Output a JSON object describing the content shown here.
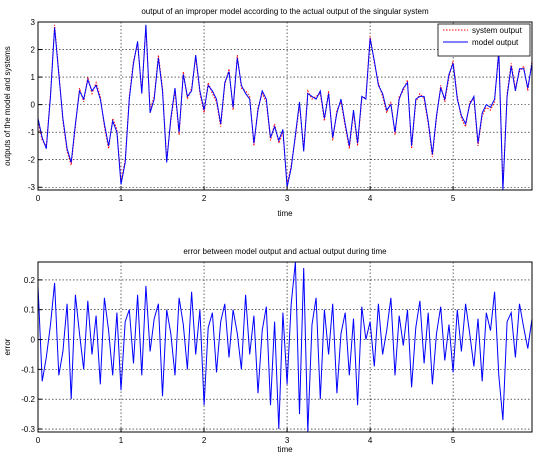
{
  "chart_data": [
    {
      "type": "line",
      "title": "output of an improper model according to the actual output of the singular system",
      "xlabel": "time",
      "ylabel": "outputs of the model and systems",
      "xlim": [
        0,
        5.95
      ],
      "ylim": [
        -3.1,
        3
      ],
      "xticks": [
        0,
        1,
        2,
        3,
        4,
        5
      ],
      "yticks": [
        -3,
        -2,
        -1,
        0,
        1,
        2,
        3
      ],
      "grid": true,
      "legend": "top-right",
      "series": [
        {
          "name": "system output",
          "color": "#ff0000",
          "style": "dotted",
          "x": [
            0,
            0.05,
            0.1,
            0.15,
            0.2,
            0.25,
            0.3,
            0.35,
            0.4,
            0.45,
            0.5,
            0.55,
            0.6,
            0.65,
            0.7,
            0.75,
            0.8,
            0.85,
            0.9,
            0.95,
            1.0,
            1.05,
            1.1,
            1.15,
            1.2,
            1.25,
            1.3,
            1.35,
            1.4,
            1.45,
            1.5,
            1.55,
            1.6,
            1.65,
            1.7,
            1.75,
            1.8,
            1.85,
            1.9,
            1.95,
            2.0,
            2.05,
            2.1,
            2.15,
            2.2,
            2.25,
            2.3,
            2.35,
            2.4,
            2.45,
            2.5,
            2.55,
            2.6,
            2.65,
            2.7,
            2.75,
            2.8,
            2.85,
            2.9,
            2.95,
            3.0,
            3.05,
            3.1,
            3.15,
            3.2,
            3.25,
            3.3,
            3.35,
            3.4,
            3.45,
            3.5,
            3.55,
            3.6,
            3.65,
            3.7,
            3.75,
            3.8,
            3.85,
            3.9,
            3.95,
            4.0,
            4.05,
            4.1,
            4.15,
            4.2,
            4.25,
            4.3,
            4.35,
            4.4,
            4.45,
            4.5,
            4.55,
            4.6,
            4.65,
            4.7,
            4.75,
            4.8,
            4.85,
            4.9,
            4.95,
            5.0,
            5.05,
            5.1,
            5.15,
            5.2,
            5.25,
            5.3,
            5.35,
            5.4,
            5.45,
            5.5,
            5.55,
            5.6,
            5.65,
            5.7,
            5.75,
            5.8,
            5.85,
            5.9,
            5.95
          ],
          "y": [
            -0.6,
            -1.3,
            -1.5,
            0.4,
            2.9,
            1.2,
            -0.6,
            -1.7,
            -2.2,
            -0.8,
            0.6,
            0.1,
            1.0,
            0.4,
            0.8,
            0.3,
            -0.8,
            -1.6,
            -0.5,
            -0.9,
            -2.8,
            -2.0,
            0.3,
            1.6,
            2.2,
            0.5,
            2.8,
            -0.2,
            0.3,
            1.8,
            0.6,
            -2.0,
            -0.6,
            0.5,
            -1.1,
            1.2,
            0.2,
            0.6,
            1.7,
            0.4,
            -0.3,
            0.8,
            0.4,
            0.1,
            -0.8,
            0.7,
            1.3,
            -0.2,
            1.8,
            0.6,
            0.5,
            0.3,
            -1.5,
            -0.1,
            0.4,
            0.1,
            -1.3,
            -0.7,
            -1.4,
            -1.0,
            -2.9,
            -2.2,
            -1.2,
            0.0,
            -1.6,
            0.5,
            0.2,
            0.3,
            0.4,
            -0.6,
            0.5,
            -1.3,
            -0.2,
            0.1,
            -0.8,
            -1.6,
            -0.3,
            -1.5,
            0.2,
            0.3,
            2.5,
            1.5,
            0.8,
            0.3,
            -0.3,
            0.1,
            -1.1,
            0.3,
            0.5,
            0.9,
            -1.6,
            0.1,
            0.4,
            0.2,
            -0.7,
            -1.9,
            -0.5,
            0.7,
            0.1,
            1.0,
            1.6,
            0.3,
            -0.5,
            -0.8,
            0.1,
            0.2,
            -1.5,
            -0.4,
            -0.1,
            -0.2,
            0.1,
            2.0,
            -3.0,
            0.4,
            1.5,
            0.6,
            1.2,
            1.4,
            0.5,
            1.6
          ],
          "values_offset_note": ""
        },
        {
          "name": "model output",
          "color": "#0000ff",
          "style": "solid",
          "x": [
            0,
            0.05,
            0.1,
            0.15,
            0.2,
            0.25,
            0.3,
            0.35,
            0.4,
            0.45,
            0.5,
            0.55,
            0.6,
            0.65,
            0.7,
            0.75,
            0.8,
            0.85,
            0.9,
            0.95,
            1.0,
            1.05,
            1.1,
            1.15,
            1.2,
            1.25,
            1.3,
            1.35,
            1.4,
            1.45,
            1.5,
            1.55,
            1.6,
            1.65,
            1.7,
            1.75,
            1.8,
            1.85,
            1.9,
            1.95,
            2.0,
            2.05,
            2.1,
            2.15,
            2.2,
            2.25,
            2.3,
            2.35,
            2.4,
            2.45,
            2.5,
            2.55,
            2.6,
            2.65,
            2.7,
            2.75,
            2.8,
            2.85,
            2.9,
            2.95,
            3.0,
            3.05,
            3.1,
            3.15,
            3.2,
            3.25,
            3.3,
            3.35,
            3.4,
            3.45,
            3.5,
            3.55,
            3.6,
            3.65,
            3.7,
            3.75,
            3.8,
            3.85,
            3.9,
            3.95,
            4.0,
            4.05,
            4.1,
            4.15,
            4.2,
            4.25,
            4.3,
            4.35,
            4.4,
            4.45,
            4.5,
            4.55,
            4.6,
            4.65,
            4.7,
            4.75,
            4.8,
            4.85,
            4.9,
            4.95,
            5.0,
            5.05,
            5.1,
            5.15,
            5.2,
            5.25,
            5.3,
            5.35,
            5.4,
            5.45,
            5.5,
            5.55,
            5.6,
            5.65,
            5.7,
            5.75,
            5.8,
            5.85,
            5.9,
            5.95
          ],
          "y": [
            -0.5,
            -1.2,
            -1.6,
            0.3,
            2.8,
            1.1,
            -0.5,
            -1.6,
            -2.1,
            -0.7,
            0.5,
            0.2,
            0.9,
            0.5,
            0.7,
            0.2,
            -0.7,
            -1.5,
            -0.6,
            -1.0,
            -2.9,
            -2.1,
            0.2,
            1.5,
            2.3,
            0.4,
            2.9,
            -0.3,
            0.2,
            1.7,
            0.5,
            -2.1,
            -0.5,
            0.6,
            -1.0,
            1.1,
            0.3,
            0.5,
            1.8,
            0.5,
            -0.2,
            0.7,
            0.5,
            0.2,
            -0.7,
            0.8,
            1.2,
            -0.1,
            1.7,
            0.7,
            0.4,
            0.2,
            -1.4,
            -0.2,
            0.5,
            0.2,
            -1.2,
            -0.8,
            -1.3,
            -0.9,
            -3.0,
            -2.3,
            -1.1,
            0.1,
            -1.7,
            0.4,
            0.3,
            0.2,
            0.5,
            -0.5,
            0.4,
            -1.2,
            -0.3,
            0.2,
            -0.7,
            -1.5,
            -0.2,
            -1.4,
            0.3,
            0.2,
            2.4,
            1.6,
            0.7,
            0.4,
            -0.2,
            0.0,
            -1.0,
            0.2,
            0.6,
            0.8,
            -1.5,
            0.2,
            0.3,
            0.3,
            -0.6,
            -1.8,
            -0.4,
            0.6,
            0.2,
            1.1,
            1.5,
            0.2,
            -0.4,
            -0.7,
            0.0,
            0.3,
            -1.4,
            -0.3,
            0.0,
            -0.1,
            0.2,
            1.9,
            -3.1,
            0.3,
            1.4,
            0.5,
            1.3,
            1.3,
            0.6,
            1.5
          ]
        }
      ]
    },
    {
      "type": "line",
      "title": "error between model output and actual output during time",
      "xlabel": "time",
      "ylabel": "error",
      "xlim": [
        0,
        5.95
      ],
      "ylim": [
        -0.31,
        0.26
      ],
      "xticks": [
        0,
        1,
        2,
        3,
        4,
        5
      ],
      "yticks": [
        -0.3,
        -0.2,
        -0.1,
        0,
        0.1,
        0.2
      ],
      "grid": true,
      "series": [
        {
          "color": "#0000ff",
          "style": "solid",
          "x": [
            0,
            0.05,
            0.1,
            0.15,
            0.2,
            0.25,
            0.3,
            0.35,
            0.4,
            0.45,
            0.5,
            0.55,
            0.6,
            0.65,
            0.7,
            0.75,
            0.8,
            0.85,
            0.9,
            0.95,
            1.0,
            1.05,
            1.1,
            1.15,
            1.2,
            1.25,
            1.3,
            1.35,
            1.4,
            1.45,
            1.5,
            1.55,
            1.6,
            1.65,
            1.7,
            1.75,
            1.8,
            1.85,
            1.9,
            1.95,
            2.0,
            2.05,
            2.1,
            2.15,
            2.2,
            2.25,
            2.3,
            2.35,
            2.4,
            2.45,
            2.5,
            2.55,
            2.6,
            2.65,
            2.7,
            2.75,
            2.8,
            2.85,
            2.9,
            2.95,
            3.0,
            3.05,
            3.1,
            3.15,
            3.2,
            3.25,
            3.3,
            3.35,
            3.4,
            3.45,
            3.5,
            3.55,
            3.6,
            3.65,
            3.7,
            3.75,
            3.8,
            3.85,
            3.9,
            3.95,
            4.0,
            4.05,
            4.1,
            4.15,
            4.2,
            4.25,
            4.3,
            4.35,
            4.4,
            4.45,
            4.5,
            4.55,
            4.6,
            4.65,
            4.7,
            4.75,
            4.8,
            4.85,
            4.9,
            4.95,
            5.0,
            5.05,
            5.1,
            5.15,
            5.2,
            5.25,
            5.3,
            5.35,
            5.4,
            5.45,
            5.5,
            5.55,
            5.6,
            5.65,
            5.7,
            5.75,
            5.8,
            5.85,
            5.9,
            5.95
          ],
          "y": [
            0.18,
            -0.14,
            -0.06,
            0.05,
            0.19,
            -0.12,
            -0.04,
            0.12,
            -0.2,
            0.15,
            0.02,
            -0.1,
            0.13,
            -0.05,
            0.08,
            -0.15,
            0.14,
            0.03,
            -0.12,
            0.09,
            -0.17,
            0.06,
            0.1,
            -0.08,
            0.15,
            -0.12,
            0.18,
            -0.04,
            0.07,
            0.12,
            -0.19,
            0.1,
            0.02,
            -0.12,
            0.14,
            0.05,
            -0.1,
            0.16,
            -0.05,
            0.1,
            -0.22,
            0.04,
            0.09,
            -0.11,
            0.06,
            0.12,
            -0.06,
            0.1,
            0.02,
            -0.1,
            0.15,
            -0.05,
            0.08,
            -0.18,
            0.03,
            0.11,
            -0.22,
            0.06,
            -0.3,
            0.09,
            -0.15,
            0.12,
            0.26,
            -0.25,
            0.24,
            -0.31,
            0.05,
            0.14,
            -0.2,
            0.1,
            -0.05,
            0.12,
            -0.18,
            0.02,
            0.09,
            -0.12,
            0.07,
            -0.22,
            0.11,
            0.0,
            0.06,
            -0.09,
            0.12,
            -0.05,
            0.03,
            0.14,
            -0.12,
            0.08,
            -0.02,
            0.1,
            -0.16,
            0.04,
            0.13,
            -0.08,
            0.09,
            -0.15,
            0.02,
            0.11,
            -0.07,
            0.05,
            -0.11,
            0.1,
            -0.04,
            0.12,
            0.02,
            -0.09,
            0.07,
            -0.14,
            0.09,
            0.03,
            0.16,
            -0.12,
            -0.27,
            0.06,
            0.09,
            -0.06,
            0.12,
            0.04,
            -0.03,
            0.07
          ]
        }
      ]
    }
  ]
}
